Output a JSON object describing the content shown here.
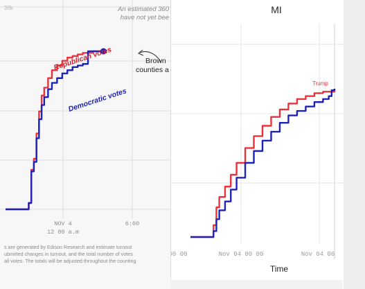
{
  "chart_data": [
    {
      "type": "line",
      "title": "",
      "ylabel": "",
      "y_axis_partial_label": "36k",
      "note_top": [
        "An estimated 360",
        "have not yet bee"
      ],
      "x_tick_labels": [
        {
          "line1": "NOV 4",
          "line2": "12 00 a.m"
        },
        {
          "line1": "6:00",
          "line2": ""
        }
      ],
      "x_range": [
        0,
        100
      ],
      "y_range": [
        0,
        100
      ],
      "annotations": {
        "republican": "Republican votes",
        "democratic": "Democratic votes",
        "callout": [
          "Brown",
          "counties a"
        ]
      },
      "series": [
        {
          "name": "Republican votes",
          "color": "#e8323c",
          "x": [
            0,
            15,
            18,
            20,
            22,
            24,
            26,
            28,
            30,
            33,
            36,
            40,
            44,
            48,
            52,
            56,
            60,
            64,
            68,
            72,
            76
          ],
          "y": [
            0,
            0,
            4,
            25,
            32,
            48,
            62,
            72,
            77,
            83,
            88,
            91,
            94,
            96,
            97,
            98,
            99,
            99,
            100,
            100,
            100
          ]
        },
        {
          "name": "Democratic votes",
          "color": "#1d22b8",
          "x": [
            0,
            15,
            18,
            20,
            22,
            24,
            26,
            28,
            30,
            33,
            36,
            40,
            44,
            48,
            52,
            56,
            60,
            62,
            64,
            66,
            68,
            72,
            76
          ],
          "y": [
            0,
            0,
            4,
            24,
            30,
            45,
            57,
            66,
            71,
            76,
            80,
            83,
            86,
            88,
            90,
            91,
            92,
            92,
            100,
            100,
            100,
            100,
            100
          ]
        }
      ]
    },
    {
      "type": "line",
      "title": "MI",
      "xlabel": "Time",
      "ylabel": "",
      "x_tick_labels": [
        "00 00",
        "Nov 04 00 00",
        "Nov 04 06"
      ],
      "x_range": [
        0,
        100
      ],
      "y_range": [
        0,
        100
      ],
      "annotations": {
        "trump": "Trump"
      },
      "series": [
        {
          "name": "Trump",
          "color": "#e8323c",
          "x": [
            0,
            12,
            16,
            18,
            20,
            24,
            28,
            32,
            38,
            44,
            50,
            56,
            62,
            68,
            74,
            80,
            86,
            92,
            100
          ],
          "y": [
            0,
            0,
            8,
            20,
            27,
            34,
            42,
            50,
            60,
            68,
            75,
            81,
            86,
            90,
            93,
            95,
            97,
            98,
            100
          ]
        },
        {
          "name": "",
          "color": "#1d22b8",
          "x": [
            0,
            12,
            16,
            18,
            20,
            24,
            28,
            32,
            38,
            44,
            50,
            56,
            62,
            68,
            74,
            80,
            86,
            92,
            96,
            98,
            100
          ],
          "y": [
            0,
            0,
            4,
            12,
            18,
            24,
            32,
            40,
            50,
            58,
            65,
            71,
            77,
            82,
            85,
            88,
            91,
            93,
            95,
            99,
            100
          ]
        }
      ]
    }
  ],
  "caption": [
    "s are generated by Edison Research and estimate turnout",
    "ubmitted changes in turnout, and the total number of votes",
    "all votes. The totals will be adjusted throughout the counting"
  ]
}
